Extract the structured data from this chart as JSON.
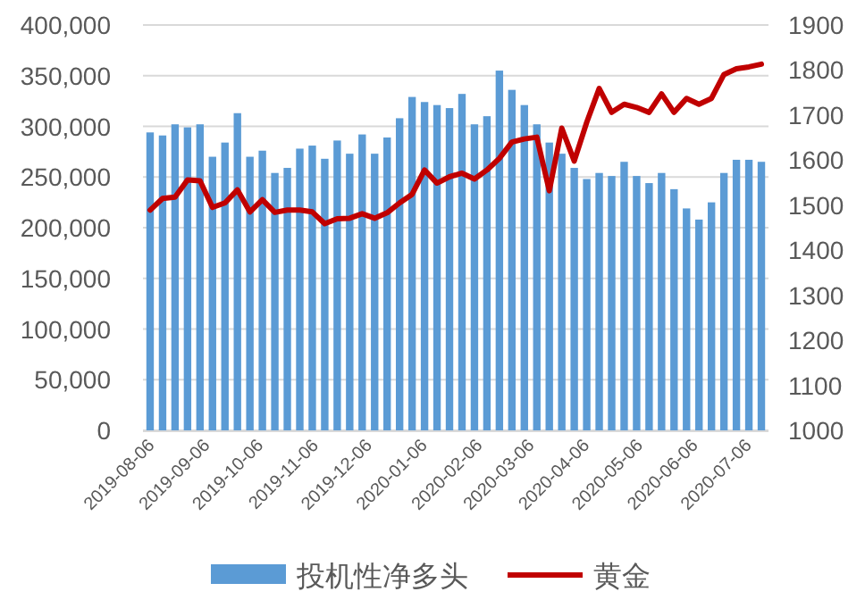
{
  "chart_data": {
    "type": "bar",
    "x": [
      "2019-08-06",
      "2019-08-13",
      "2019-08-20",
      "2019-08-27",
      "2019-09-03",
      "2019-09-10",
      "2019-09-17",
      "2019-09-24",
      "2019-10-01",
      "2019-10-08",
      "2019-10-15",
      "2019-10-22",
      "2019-10-29",
      "2019-11-05",
      "2019-11-12",
      "2019-11-19",
      "2019-11-26",
      "2019-12-03",
      "2019-12-10",
      "2019-12-17",
      "2019-12-24",
      "2019-12-31",
      "2020-01-07",
      "2020-01-14",
      "2020-01-21",
      "2020-01-28",
      "2020-02-04",
      "2020-02-11",
      "2020-02-18",
      "2020-02-25",
      "2020-03-03",
      "2020-03-10",
      "2020-03-17",
      "2020-03-24",
      "2020-03-31",
      "2020-04-07",
      "2020-04-14",
      "2020-04-21",
      "2020-04-28",
      "2020-05-05",
      "2020-05-12",
      "2020-05-19",
      "2020-05-26",
      "2020-06-02",
      "2020-06-09",
      "2020-06-16",
      "2020-06-23",
      "2020-06-30",
      "2020-07-07",
      "2020-07-14"
    ],
    "series": [
      {
        "name": "投机性净多头",
        "color": "#5b9bd5",
        "values": [
          294000,
          291000,
          302000,
          299000,
          302000,
          270000,
          284000,
          313000,
          270000,
          276000,
          254000,
          259000,
          278000,
          281000,
          268000,
          286000,
          273000,
          292000,
          273000,
          289000,
          308000,
          329000,
          324000,
          321000,
          318000,
          332000,
          302000,
          310000,
          355000,
          336000,
          321000,
          302000,
          284000,
          273000,
          259000,
          248000,
          254000,
          251000,
          265000,
          251000,
          244000,
          254000,
          238000,
          219000,
          208000,
          225000,
          254000,
          267000,
          267000,
          265000
        ]
      },
      {
        "name": "黄金",
        "type": "line",
        "axis": "y2",
        "color": "#c00000",
        "values": [
          1489,
          1515,
          1518,
          1556,
          1554,
          1495,
          1505,
          1534,
          1485,
          1512,
          1484,
          1489,
          1489,
          1485,
          1459,
          1470,
          1471,
          1481,
          1471,
          1483,
          1505,
          1524,
          1578,
          1549,
          1563,
          1571,
          1558,
          1578,
          1604,
          1640,
          1647,
          1651,
          1532,
          1671,
          1598,
          1684,
          1759,
          1706,
          1724,
          1717,
          1706,
          1747,
          1706,
          1737,
          1724,
          1737,
          1790,
          1803,
          1807,
          1813
        ]
      }
    ],
    "xlim": [
      "2019-08-02",
      "2020-07-18"
    ],
    "xticks": [
      "2019-08-06",
      "2019-09-06",
      "2019-10-06",
      "2019-11-06",
      "2019-12-06",
      "2020-01-06",
      "2020-02-06",
      "2020-03-06",
      "2020-04-06",
      "2020-05-06",
      "2020-06-06",
      "2020-07-06"
    ],
    "ylim": [
      0,
      400000
    ],
    "yticks": [
      0,
      {
        "value": 50000,
        "label": "50,000"
      },
      {
        "value": 100000,
        "label": "100,000"
      },
      {
        "value": 150000,
        "label": "150,000"
      },
      {
        "value": 200000,
        "label": "200,000"
      },
      {
        "value": 250000,
        "label": "250,000"
      },
      {
        "value": 300000,
        "label": "300,000"
      },
      {
        "value": 350000,
        "label": "350,000"
      },
      {
        "value": 400000,
        "label": "400,000"
      }
    ],
    "y2lim": [
      1000,
      1900
    ],
    "y2ticks": [
      1000,
      1100,
      1200,
      1300,
      1400,
      1500,
      1600,
      1700,
      1800,
      1900
    ],
    "grid": "y",
    "legend": "bottom"
  }
}
